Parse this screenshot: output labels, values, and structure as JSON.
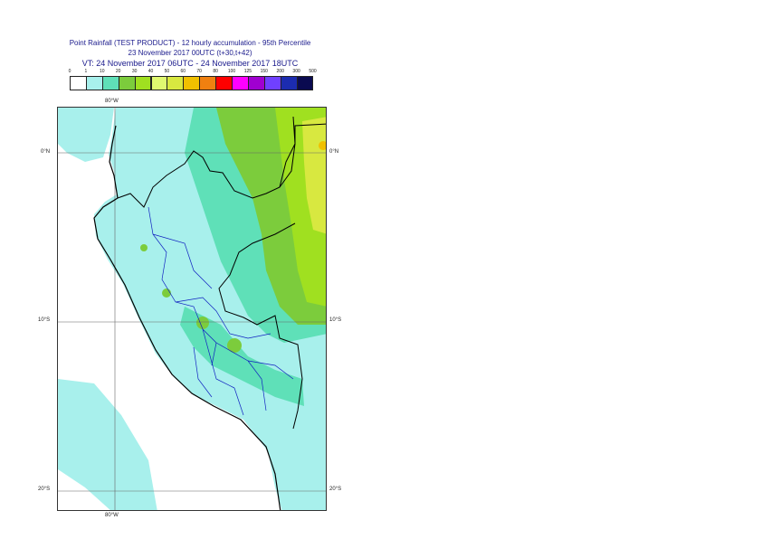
{
  "title": {
    "line1": "Point Rainfall (TEST PRODUCT) - 12 hourly accumulation - 95th Percentile",
    "line2": "23 November 2017 00UTC (t+30,t+42)",
    "line3": "VT: 24 November 2017 06UTC - 24 November 2017 18UTC"
  },
  "legend": {
    "labels": [
      "0",
      "1",
      "10",
      "20",
      "30",
      "40",
      "50",
      "60",
      "70",
      "80",
      "100",
      "125",
      "150",
      "200",
      "300",
      "500"
    ],
    "colors": [
      "#ffffff",
      "#a8f0ec",
      "#5fe0b8",
      "#7ccc3c",
      "#a0e020",
      "#e0f870",
      "#d8e840",
      "#f0c000",
      "#f08010",
      "#ff0000",
      "#ff00ff",
      "#a000d0",
      "#7040ff",
      "#1c2cb0",
      "#0a0a50"
    ]
  },
  "map": {
    "lon_labels": {
      "top": "80°W",
      "bottom": "80°W"
    },
    "lat_labels": {
      "lat0_left": "0°N",
      "lat0_right": "0°N",
      "lat10_left": "10°S",
      "lat10_right": "10°S",
      "lat20_left": "20°S",
      "lat20_right": "20°S"
    },
    "colors": {
      "land_base": "#a8f0ec",
      "ocean": "#ffffff",
      "moderate": "#5fe0b8",
      "heavy": "#7ccc3c",
      "very_heavy": "#a0e020",
      "extreme": "#d8e840",
      "peak": "#f0c000",
      "border": "#000000",
      "region_border": "#1020c0",
      "graticule": "#666666"
    }
  }
}
